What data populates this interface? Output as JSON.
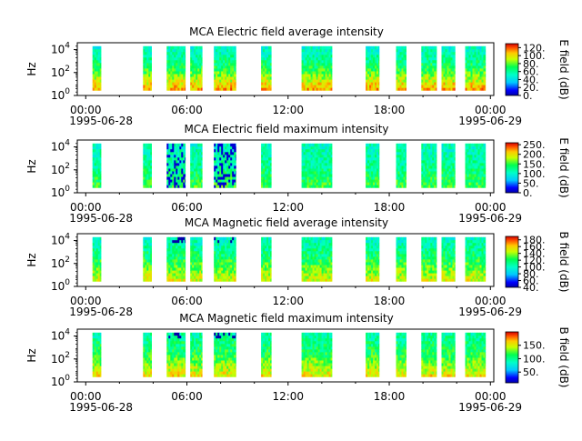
{
  "chart_data": [
    {
      "type": "heatmap",
      "title": "MCA  Electric field average intensity",
      "ylabel": "Hz",
      "yscale": "log",
      "yticks": [
        {
          "base": "10",
          "exp": "0"
        },
        {
          "base": "10",
          "exp": "2"
        },
        {
          "base": "10",
          "exp": "4"
        }
      ],
      "xticks": [
        "00:00",
        "06:00",
        "12:00",
        "18:00",
        "00:00"
      ],
      "date_start": "1995-06-28",
      "date_end": "1995-06-29",
      "colorbar": {
        "label": "E field (dB)",
        "range": [
          0,
          130
        ],
        "ticks": [
          "0.",
          "20.",
          "40.",
          "60.",
          "80.",
          "100.",
          "120."
        ]
      },
      "data_intervals_hours": [
        [
          0.4,
          0.9
        ],
        [
          3.4,
          3.9
        ],
        [
          4.8,
          5.9
        ],
        [
          6.2,
          6.9
        ],
        [
          7.6,
          8.9
        ],
        [
          10.4,
          11.0
        ],
        [
          12.8,
          14.6
        ],
        [
          16.6,
          17.4
        ],
        [
          18.4,
          19.0
        ],
        [
          19.9,
          20.8
        ],
        [
          21.1,
          21.9
        ],
        [
          22.5,
          23.7
        ]
      ],
      "intensity_profile": {
        "low_freq": 110,
        "mid_freq": 70,
        "high_freq": 50
      }
    },
    {
      "type": "heatmap",
      "title": "MCA  Electric field maximum intensity",
      "ylabel": "Hz",
      "yscale": "log",
      "yticks": [
        {
          "base": "10",
          "exp": "0"
        },
        {
          "base": "10",
          "exp": "2"
        },
        {
          "base": "10",
          "exp": "4"
        }
      ],
      "xticks": [
        "00:00",
        "06:00",
        "12:00",
        "18:00",
        "00:00"
      ],
      "date_start": "1995-06-28",
      "date_end": "1995-06-29",
      "colorbar": {
        "label": "E field (dB)",
        "range": [
          0,
          260
        ],
        "ticks": [
          "0.",
          "50.",
          "100.",
          "150.",
          "200.",
          "250."
        ]
      },
      "data_intervals_hours": [
        [
          0.4,
          0.9
        ],
        [
          3.4,
          3.9
        ],
        [
          4.8,
          5.9
        ],
        [
          6.2,
          6.9
        ],
        [
          7.6,
          8.9
        ],
        [
          10.4,
          11.0
        ],
        [
          12.8,
          14.6
        ],
        [
          16.6,
          17.4
        ],
        [
          18.4,
          19.0
        ],
        [
          19.9,
          20.8
        ],
        [
          21.1,
          21.9
        ],
        [
          22.5,
          23.7
        ]
      ],
      "intensity_profile": {
        "low_freq": 150,
        "mid_freq": 120,
        "high_freq": 105
      }
    },
    {
      "type": "heatmap",
      "title": "MCA  Magnetic field average intensity",
      "ylabel": "Hz",
      "yscale": "log",
      "yticks": [
        {
          "base": "10",
          "exp": "0"
        },
        {
          "base": "10",
          "exp": "2"
        },
        {
          "base": "10",
          "exp": "4"
        }
      ],
      "xticks": [
        "00:00",
        "06:00",
        "12:00",
        "18:00",
        "00:00"
      ],
      "date_start": "1995-06-28",
      "date_end": "1995-06-29",
      "colorbar": {
        "label": "B field (dB)",
        "range": [
          40,
          190
        ],
        "ticks": [
          "40.",
          "60.",
          "80.",
          "100.",
          "120.",
          "140.",
          "160.",
          "180."
        ]
      },
      "data_intervals_hours": [
        [
          0.4,
          0.9
        ],
        [
          3.4,
          3.9
        ],
        [
          4.8,
          5.9
        ],
        [
          6.2,
          6.9
        ],
        [
          7.6,
          8.9
        ],
        [
          10.4,
          11.0
        ],
        [
          12.8,
          14.6
        ],
        [
          16.6,
          17.4
        ],
        [
          18.4,
          19.0
        ],
        [
          19.9,
          20.8
        ],
        [
          21.1,
          21.9
        ],
        [
          22.5,
          23.7
        ]
      ],
      "intensity_profile": {
        "low_freq": 150,
        "mid_freq": 120,
        "high_freq": 100
      }
    },
    {
      "type": "heatmap",
      "title": "MCA  Magnetic field maximum intensity",
      "ylabel": "Hz",
      "yscale": "log",
      "yticks": [
        {
          "base": "10",
          "exp": "0"
        },
        {
          "base": "10",
          "exp": "2"
        },
        {
          "base": "10",
          "exp": "4"
        }
      ],
      "xticks": [
        "00:00",
        "06:00",
        "12:00",
        "18:00",
        "00:00"
      ],
      "date_start": "1995-06-28",
      "date_end": "1995-06-29",
      "colorbar": {
        "label": "B field (dB)",
        "range": [
          10,
          200
        ],
        "ticks": [
          "50.",
          "100.",
          "150."
        ]
      },
      "data_intervals_hours": [
        [
          0.4,
          0.9
        ],
        [
          3.4,
          3.9
        ],
        [
          4.8,
          5.9
        ],
        [
          6.2,
          6.9
        ],
        [
          7.6,
          8.9
        ],
        [
          10.4,
          11.0
        ],
        [
          12.8,
          14.6
        ],
        [
          16.6,
          17.4
        ],
        [
          18.4,
          19.0
        ],
        [
          19.9,
          20.8
        ],
        [
          21.1,
          21.9
        ],
        [
          22.5,
          23.7
        ]
      ],
      "intensity_profile": {
        "low_freq": 155,
        "mid_freq": 115,
        "high_freq": 95
      }
    }
  ]
}
